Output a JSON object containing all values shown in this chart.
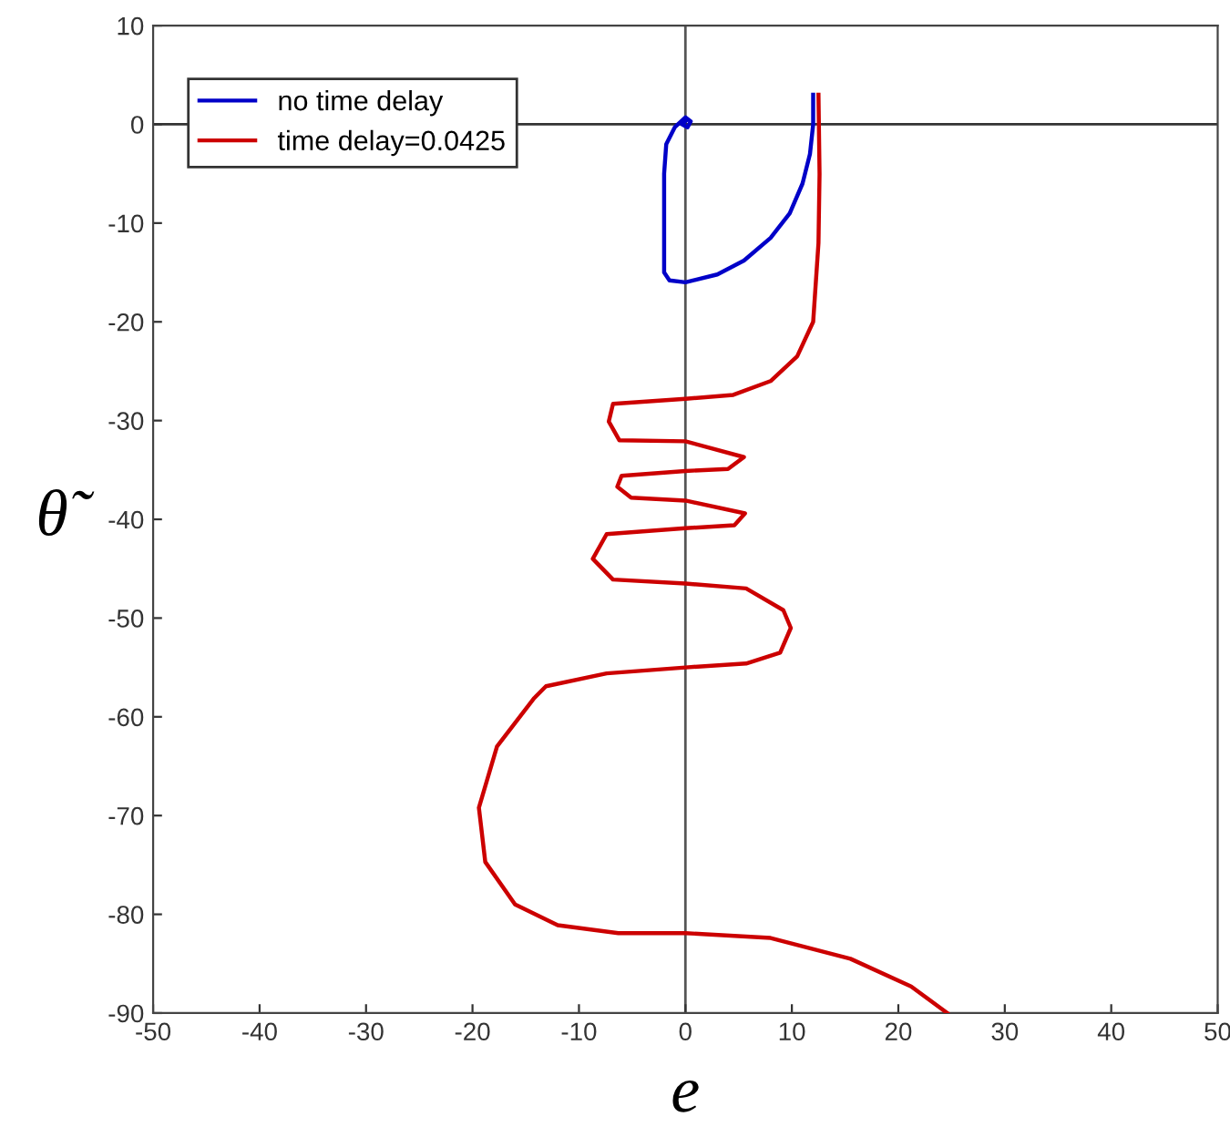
{
  "chart_data": {
    "type": "line",
    "xlabel": "e",
    "ylabel": "θ̃",
    "series": [
      {
        "name": "no time delay",
        "color": "#0000c8",
        "x": [
          12,
          12,
          11.7,
          11,
          9.8,
          8,
          5.5,
          3,
          0,
          -1.5,
          -2,
          -2,
          -2,
          -1.8,
          -1,
          0,
          0.5,
          0.2,
          -0.3,
          0
        ],
        "values": [
          3,
          0,
          -3,
          -6,
          -9,
          -11.5,
          -13.8,
          -15.2,
          -16,
          -15.8,
          -15,
          -10,
          -5,
          -2,
          -0.3,
          0.7,
          0.3,
          -0.3,
          0,
          0.3
        ]
      },
      {
        "name": "time delay=0.0425",
        "color": "#cc0000",
        "x": [
          12.5,
          12.6,
          12.5,
          12,
          10.5,
          8,
          4.5,
          0,
          -6.8,
          -7.2,
          -6.2,
          0,
          5.5,
          4,
          0,
          -6,
          -6.4,
          -5.1,
          0,
          5.6,
          4.6,
          0,
          -7.4,
          -8.7,
          -6.8,
          0,
          5.7,
          9.2,
          9.9,
          8.9,
          5.7,
          0,
          -7.4,
          -13.1,
          -14.2,
          -17.7,
          -19.4,
          -18.8,
          -16,
          -12,
          -6.3,
          0,
          8,
          15.5,
          21.2,
          24.6
        ],
        "values": [
          3,
          -5,
          -12,
          -20,
          -23.5,
          -26,
          -27.4,
          -27.8,
          -28.3,
          -30.1,
          -32,
          -32.1,
          -33.7,
          -34.9,
          -35.1,
          -35.6,
          -36.7,
          -37.8,
          -38.1,
          -39.4,
          -40.6,
          -40.9,
          -41.5,
          -44,
          -46.1,
          -46.5,
          -47,
          -49.2,
          -51,
          -53.5,
          -54.6,
          -55,
          -55.6,
          -56.9,
          -58.1,
          -63,
          -69.2,
          -74.7,
          -79,
          -81.1,
          -81.9,
          -81.9,
          -82.4,
          -84.5,
          -87.3,
          -90
        ]
      }
    ],
    "xlim": [
      -50,
      50
    ],
    "ylim": [
      -90,
      10
    ],
    "xticks": [
      -50,
      -40,
      -30,
      -20,
      -10,
      0,
      10,
      20,
      30,
      40,
      50
    ],
    "yticks": [
      10,
      0,
      -10,
      -20,
      -30,
      -40,
      -50,
      -60,
      -70,
      -80,
      -90
    ],
    "ref_lines": [
      {
        "axis": "x",
        "value": 0,
        "color": "#555555"
      },
      {
        "axis": "y",
        "value": 0,
        "color": "#333333"
      }
    ],
    "legend": "upper left",
    "grid": false,
    "marker": "none",
    "line_style": "solid"
  }
}
